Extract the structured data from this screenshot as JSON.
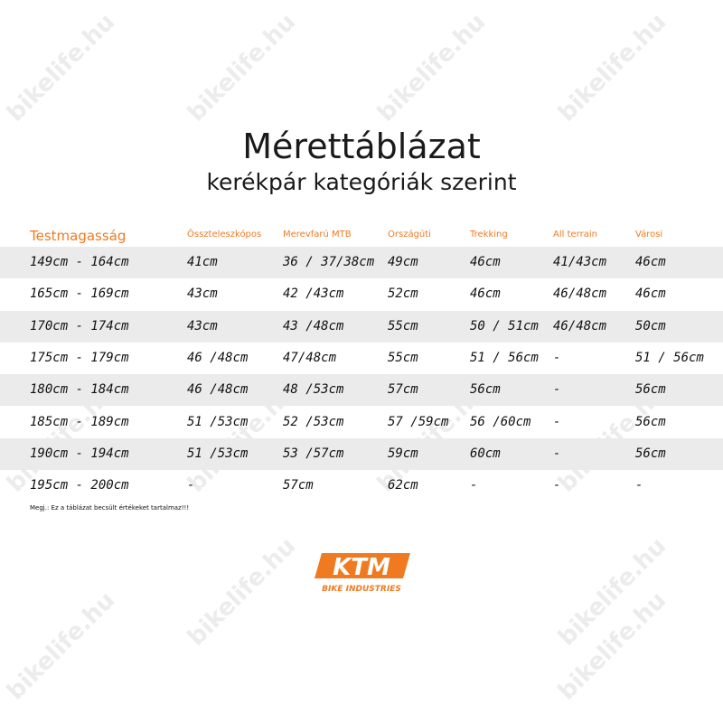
{
  "watermark": "bikelife.hu",
  "title": "Mérettáblázat",
  "subtitle": "kerékpár kategóriák szerint",
  "accent_color": "#f07a20",
  "headers": [
    "Testmagasság",
    "Összteleszkópos",
    "Merevfarú MTB",
    "Országúti",
    "Trekking",
    "All terrain",
    "Városi"
  ],
  "rows": [
    [
      "149cm - 164cm",
      "41cm",
      "36 / 37/38cm",
      "49cm",
      "46cm",
      "41/43cm",
      "46cm"
    ],
    [
      "165cm - 169cm",
      "43cm",
      "42 /43cm",
      "52cm",
      "46cm",
      "46/48cm",
      "46cm"
    ],
    [
      "170cm - 174cm",
      "43cm",
      "43 /48cm",
      "55cm",
      "50 / 51cm",
      "46/48cm",
      "50cm"
    ],
    [
      "175cm - 179cm",
      "46 /48cm",
      "47/48cm",
      "55cm",
      "51 / 56cm",
      "-",
      "51 / 56cm"
    ],
    [
      "180cm - 184cm",
      "46 /48cm",
      "48 /53cm",
      "57cm",
      "56cm",
      "-",
      "56cm"
    ],
    [
      "185cm - 189cm",
      "51 /53cm",
      "52 /53cm",
      "57 /59cm",
      "56 /60cm",
      "-",
      "56cm"
    ],
    [
      "190cm - 194cm",
      "51 /53cm",
      "53 /57cm",
      "59cm",
      "60cm",
      "-",
      "56cm"
    ],
    [
      "195cm - 200cm",
      "-",
      "57cm",
      "62cm",
      "-",
      "-",
      "-"
    ]
  ],
  "note": "Megj.: Ez a táblázat becsült értékeket tartalmaz!!!",
  "logo": {
    "brand": "KTM",
    "tagline": "BIKE INDUSTRIES"
  }
}
